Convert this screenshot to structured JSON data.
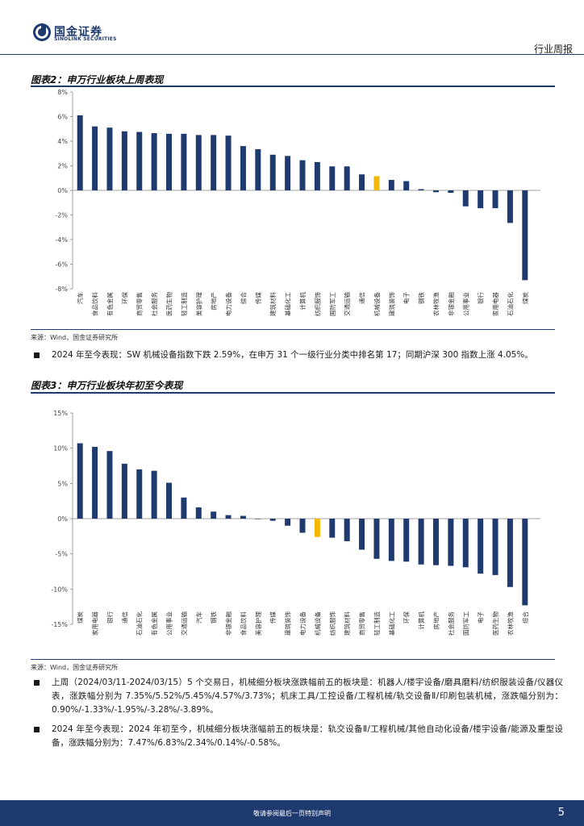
{
  "header": {
    "logo_cn": "国金证券",
    "logo_en": "SINOLINK SECURITIES",
    "tag": "行业周报"
  },
  "figure2": {
    "title": "图表2：申万行业板块上周表现",
    "source": "来源：Wind，国金证券研究所"
  },
  "bullet1": {
    "text": "2024 年至今表现：SW 机械设备指数下跌 2.59%，在申万 31 个一级行业分类中排名第 17；同期沪深 300 指数上涨 4.05%。"
  },
  "figure3": {
    "title": "图表3：申万行业板块年初至今表现",
    "source": "来源：Wind，国金证券研究所"
  },
  "bullet2": {
    "text": "上周（2024/03/11-2024/03/15）5 个交易日，机械细分板块涨跌幅前五的板块是：机器人/楼宇设备/磨具磨料/纺织服装设备/仪器仪表，涨跌幅分别为 7.35%/5.52%/5.45%/4.57%/3.73%；机床工具/工控设备/工程机械/轨交设备Ⅱ/印刷包装机械，涨跌幅分别为：0.90%/-1.33%/-1.95%/-3.28%/-3.89%。"
  },
  "bullet3": {
    "text": "2024 年至今表现：2024 年初至今，机械细分板块涨幅前五的板块是：轨交设备Ⅱ/工程机械/其他自动化设备/楼宇设备/能源及重型设备，涨跌幅分别为：7.47%/6.83%/2.34%/0.14%/-0.58%。"
  },
  "footer": {
    "text": "敬请参阅最后一页特别声明",
    "page": "5"
  },
  "colors": {
    "bar": "#1f3a6e",
    "highlight": "#f5b800",
    "brand": "#1f3a6e"
  },
  "chart_data": [
    {
      "type": "bar",
      "title": "图表2：申万行业板块上周表现",
      "xlabel": "",
      "ylabel": "",
      "ylim": [
        -8,
        8
      ],
      "yticks": [
        8,
        6,
        4,
        2,
        0,
        -2,
        -4,
        -6,
        -8
      ],
      "tick_suffix": "%",
      "highlight": "机械设备",
      "categories": [
        "汽车",
        "食品饮料",
        "有色金属",
        "环保",
        "商贸零售",
        "社会服务",
        "医药生物",
        "轻工制造",
        "美容护理",
        "房地产",
        "电力设备",
        "综合",
        "传媒",
        "建筑材料",
        "基础化工",
        "计算机",
        "纺织服饰",
        "国防军工",
        "交通运输",
        "通信",
        "机械设备",
        "建筑装饰",
        "电子",
        "钢铁",
        "农林牧渔",
        "非银金融",
        "公用事业",
        "银行",
        "家用电器",
        "石油石化",
        "煤炭"
      ],
      "values": [
        6.1,
        5.2,
        5.1,
        4.8,
        4.75,
        4.65,
        4.6,
        4.6,
        4.5,
        4.5,
        4.45,
        3.6,
        3.35,
        2.9,
        2.8,
        2.45,
        2.3,
        1.95,
        1.95,
        1.3,
        1.15,
        0.85,
        0.75,
        0.1,
        -0.15,
        -0.2,
        -1.3,
        -1.45,
        -1.45,
        -2.65,
        -7.3
      ]
    },
    {
      "type": "bar",
      "title": "图表3：申万行业板块年初至今表现",
      "xlabel": "",
      "ylabel": "",
      "ylim": [
        -15,
        15
      ],
      "yticks": [
        15,
        10,
        5,
        0,
        -5,
        -10,
        -15
      ],
      "tick_suffix": "%",
      "highlight": "机械设备",
      "categories": [
        "煤炭",
        "家用电器",
        "银行",
        "通信",
        "石油石化",
        "有色金属",
        "公用事业",
        "交通运输",
        "汽车",
        "钢铁",
        "非银金融",
        "食品饮料",
        "美容护理",
        "传媒",
        "建筑装饰",
        "电力设备",
        "机械设备",
        "纺织服饰",
        "建筑材料",
        "商贸零售",
        "轻工制造",
        "基础化工",
        "环保",
        "计算机",
        "房地产",
        "社会服务",
        "国防军工",
        "电子",
        "医药生物",
        "农林牧渔",
        "综合"
      ],
      "values": [
        10.7,
        10.2,
        9.6,
        7.8,
        7.0,
        6.8,
        5.1,
        3.0,
        1.6,
        1.0,
        0.5,
        0.4,
        0.0,
        -0.3,
        -1.0,
        -2.0,
        -2.59,
        -2.7,
        -3.2,
        -4.4,
        -5.7,
        -6.0,
        -6.1,
        -6.5,
        -6.6,
        -6.7,
        -6.9,
        -7.8,
        -8.0,
        -9.7,
        -12.3
      ]
    }
  ]
}
